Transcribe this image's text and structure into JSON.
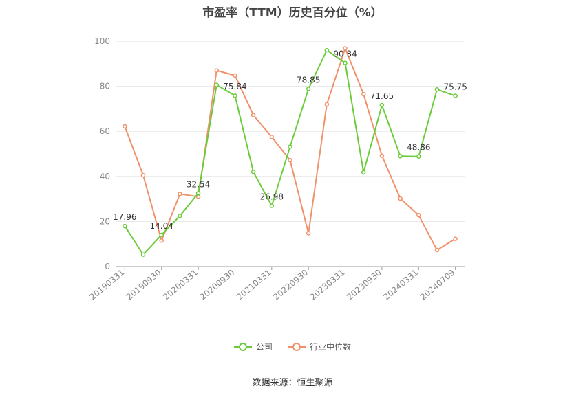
{
  "chart_data": {
    "type": "line",
    "title": "市盈率（TTM）历史百分位（%）",
    "xlabel": "",
    "ylabel": "",
    "ylim": [
      0,
      100
    ],
    "yticks": [
      0,
      20,
      40,
      60,
      80,
      100
    ],
    "grid": true,
    "legend_position": "bottom",
    "x": [
      "20190331",
      "20190630",
      "20190930",
      "20191231",
      "20200331",
      "20200630",
      "20200930",
      "20201231",
      "20210331",
      "20210630",
      "20220930",
      "20221231",
      "20230331",
      "20230630",
      "20230930",
      "20231231",
      "20240331",
      "20240630",
      "20240709"
    ],
    "x_tick_labels": [
      "20190331",
      "20190930",
      "20200331",
      "20200930",
      "20210331",
      "20220930",
      "20230331",
      "20230930",
      "20240331",
      "20240709"
    ],
    "series": [
      {
        "name": "公司",
        "color": "#6bcc3b",
        "values": [
          17.96,
          5.3,
          14.04,
          22.5,
          32.54,
          80.6,
          75.84,
          42.0,
          26.98,
          53.2,
          78.85,
          96.0,
          90.34,
          41.8,
          71.65,
          49.0,
          48.86,
          78.6,
          75.75
        ]
      },
      {
        "name": "行业中位数",
        "color": "#f0916a",
        "values": [
          62.2,
          40.5,
          11.5,
          32.2,
          31.0,
          87.0,
          84.8,
          67.2,
          57.5,
          47.2,
          14.8,
          72.0,
          96.8,
          76.5,
          49.2,
          30.2,
          22.8,
          7.3,
          12.3
        ]
      }
    ],
    "annotations": [
      {
        "series": 0,
        "index": 0,
        "text": "17.96"
      },
      {
        "series": 0,
        "index": 2,
        "text": "14.04"
      },
      {
        "series": 0,
        "index": 4,
        "text": "32.54"
      },
      {
        "series": 0,
        "index": 6,
        "text": "75.84"
      },
      {
        "series": 0,
        "index": 8,
        "text": "26.98"
      },
      {
        "series": 0,
        "index": 10,
        "text": "78.85"
      },
      {
        "series": 0,
        "index": 12,
        "text": "90.34"
      },
      {
        "series": 0,
        "index": 14,
        "text": "71.65"
      },
      {
        "series": 0,
        "index": 16,
        "text": "48.86"
      },
      {
        "series": 0,
        "index": 18,
        "text": "75.75"
      }
    ]
  },
  "legend": {
    "company_label": "公司",
    "industry_label": "行业中位数"
  },
  "source": "数据来源：恒生聚源"
}
